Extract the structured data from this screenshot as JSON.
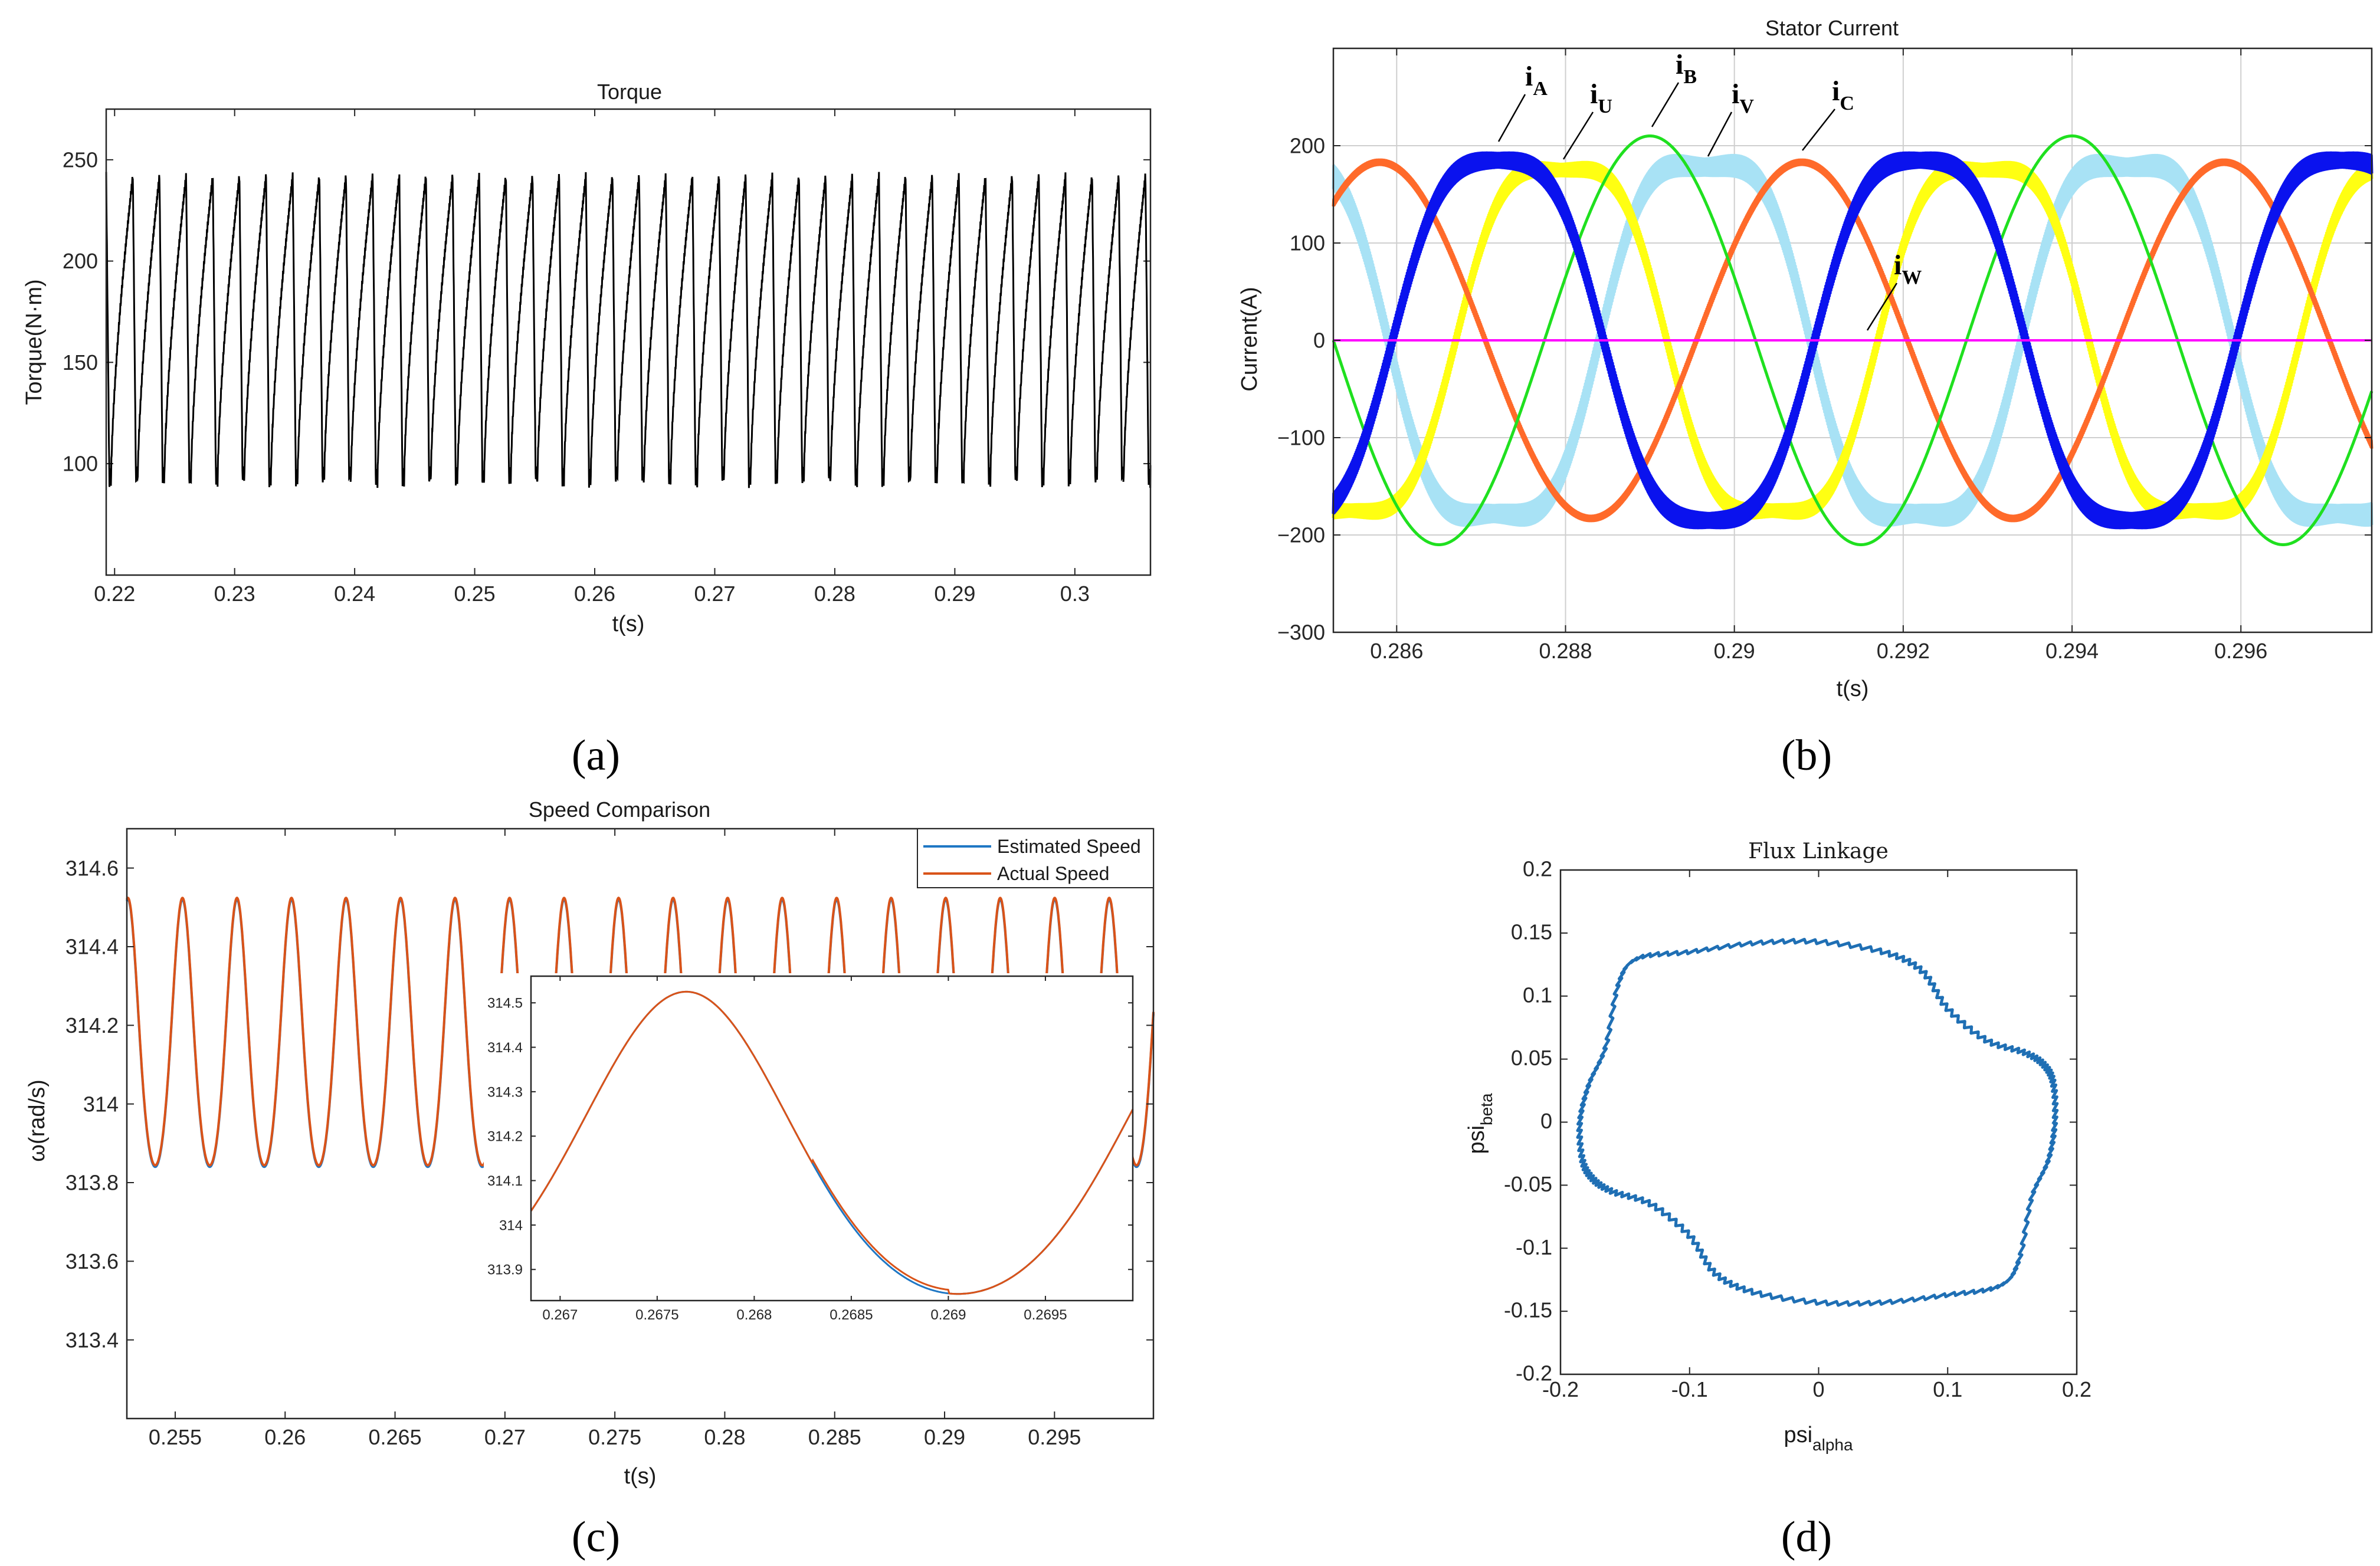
{
  "panels": {
    "a": {
      "label": "(a)",
      "chart_data": {
        "type": "line",
        "title": "Torque",
        "xlabel": "t(s)",
        "ylabel": "Torque(N·m)",
        "xlim": [
          0.2193,
          0.3063
        ],
        "ylim": [
          45,
          275
        ],
        "x_ticks": [
          0.22,
          0.23,
          0.24,
          0.25,
          0.26,
          0.27,
          0.28,
          0.29,
          0.3
        ],
        "x_tick_labels": [
          "0.22",
          "0.23",
          "0.24",
          "0.25",
          "0.26",
          "0.27",
          "0.28",
          "0.29",
          "0.3"
        ],
        "y_ticks": [
          100,
          150,
          200,
          250
        ],
        "y_tick_labels": [
          "100",
          "150",
          "200",
          "250"
        ],
        "grid": false,
        "series": [
          {
            "name": "Torque",
            "color": "#000000",
            "form": "sawtooth",
            "min": 89,
            "max": 242,
            "period": 0.00222,
            "rise_fraction": 0.3,
            "phase": 0.2193
          }
        ]
      }
    },
    "b": {
      "label": "(b)",
      "chart_data": {
        "type": "line",
        "title": "Stator Current",
        "xlabel": "t(s)",
        "ylabel": "Current(A)",
        "xlim": [
          0.28525,
          0.29755
        ],
        "ylim": [
          -300,
          300
        ],
        "x_ticks": [
          0.286,
          0.288,
          0.29,
          0.292,
          0.294,
          0.296
        ],
        "x_tick_labels": [
          "0.286",
          "0.288",
          "0.29",
          "0.292",
          "0.294",
          "0.296"
        ],
        "y_ticks": [
          -300,
          -200,
          -100,
          0,
          100,
          200
        ],
        "y_tick_labels": [
          "−300",
          "−200",
          "−100",
          "0",
          "100",
          "200"
        ],
        "grid": true,
        "series": [
          {
            "name": "iA",
            "color": "#0a12ee",
            "amp": 185,
            "period": 0.005,
            "peak_t": 0.2872,
            "ripple": 12,
            "flat_top": 0.55
          },
          {
            "name": "iB",
            "color": "#1fe01f",
            "amp": 210,
            "period": 0.005,
            "peak_t": 0.289,
            "ripple": 0,
            "flat_top": 0
          },
          {
            "name": "iC",
            "color": "#ff6a2a",
            "amp": 183,
            "period": 0.005,
            "peak_t": 0.2908,
            "ripple": 4,
            "flat_top": 0
          },
          {
            "name": "iU",
            "color": "#ffff12",
            "amp": 175,
            "period": 0.005,
            "peak_t": 0.28795,
            "ripple": 10,
            "flat_top": 0.7
          },
          {
            "name": "iV",
            "color": "#a8e2f5",
            "amp": 178,
            "period": 0.005,
            "peak_t": 0.28965,
            "ripple": 14,
            "flat_top": 0.75
          },
          {
            "name": "iW",
            "color": "#ff00ff",
            "amp": 0,
            "period": 0.005,
            "peak_t": 0,
            "ripple": 0,
            "flat_top": 0
          }
        ],
        "annotations": [
          {
            "main": "i",
            "sub": "A",
            "series": "iA"
          },
          {
            "main": "i",
            "sub": "U",
            "series": "iU"
          },
          {
            "main": "i",
            "sub": "B",
            "series": "iB"
          },
          {
            "main": "i",
            "sub": "V",
            "series": "iV"
          },
          {
            "main": "i",
            "sub": "C",
            "series": "iC"
          },
          {
            "main": "i",
            "sub": "W",
            "series": "iW"
          }
        ]
      }
    },
    "c": {
      "label": "(c)",
      "chart_data": {
        "type": "line",
        "title": "Speed Comparison",
        "xlabel": "t(s)",
        "ylabel": "ω(rad/s)",
        "xlim": [
          0.2528,
          0.2995
        ],
        "ylim": [
          313.2,
          314.7
        ],
        "x_ticks": [
          0.255,
          0.26,
          0.265,
          0.27,
          0.275,
          0.28,
          0.285,
          0.29,
          0.295
        ],
        "x_tick_labels": [
          "0.255",
          "0.26",
          "0.265",
          "0.27",
          "0.275",
          "0.28",
          "0.285",
          "0.29",
          "0.295"
        ],
        "y_ticks": [
          313.4,
          313.6,
          313.8,
          314,
          314.2,
          314.4,
          314.6
        ],
        "y_tick_labels": [
          "313.4",
          "313.6",
          "313.8",
          "314",
          "314.2",
          "314.4",
          "314.6"
        ],
        "grid": false,
        "legend_position": "top-right",
        "series": [
          {
            "name": "Estimated Speed",
            "color": "#1f77c4",
            "min": 313.84,
            "max": 314.52,
            "period": 0.00248,
            "peak_t": 0.27765
          },
          {
            "name": "Actual Speed",
            "color": "#d95319",
            "min": 313.84,
            "max": 314.52,
            "period": 0.00248,
            "peak_t": 0.27765
          }
        ],
        "inset": {
          "xlim": [
            0.26685,
            0.26995
          ],
          "ylim": [
            313.83,
            314.56
          ],
          "x_ticks": [
            0.267,
            0.2675,
            0.268,
            0.2685,
            0.269,
            0.2695
          ],
          "x_tick_labels": [
            "0.267",
            "0.2675",
            "0.268",
            "0.2685",
            "0.269",
            "0.2695"
          ],
          "y_ticks": [
            313.9,
            314,
            314.1,
            314.2,
            314.3,
            314.4,
            314.5
          ],
          "y_tick_labels": [
            "313.9",
            "314",
            "314.1",
            "314.2",
            "314.3",
            "314.4",
            "314.5"
          ],
          "peak_t": 0.26765,
          "trough_t": 0.26905,
          "min": 313.845,
          "max": 314.525
        }
      }
    },
    "d": {
      "label": "(d)",
      "chart_data": {
        "type": "line",
        "title": "Flux Linkage",
        "xlabel_main": "psi",
        "xlabel_sub": "alpha",
        "ylabel_main": "psi",
        "ylabel_sub": "beta",
        "xlim": [
          -0.2,
          0.2
        ],
        "ylim": [
          -0.2,
          0.2
        ],
        "x_ticks": [
          -0.2,
          -0.1,
          0,
          0.1,
          0.2
        ],
        "x_tick_labels": [
          "-0.2",
          "-0.1",
          "0",
          "0.1",
          "0.2"
        ],
        "y_ticks": [
          -0.2,
          -0.15,
          -0.1,
          -0.05,
          0,
          0.05,
          0.1,
          0.15,
          0.2
        ],
        "y_tick_labels": [
          "-0.2",
          "-0.15",
          "-0.1",
          "-0.05",
          "0",
          "0.05",
          "0.1",
          "0.15",
          "0.2"
        ],
        "grid": false,
        "series": [
          {
            "name": "flux",
            "color": "#1f6fb4",
            "points": [
              [
                0.183,
                0.0
              ],
              [
                0.182,
                0.03
              ],
              [
                0.175,
                0.045
              ],
              [
                0.16,
                0.055
              ],
              [
                0.13,
                0.065
              ],
              [
                0.1,
                0.09
              ],
              [
                0.08,
                0.12
              ],
              [
                0.05,
                0.135
              ],
              [
                0.0,
                0.143
              ],
              [
                -0.05,
                0.142
              ],
              [
                -0.1,
                0.135
              ],
              [
                -0.14,
                0.13
              ],
              [
                -0.155,
                0.11
              ],
              [
                -0.165,
                0.06
              ],
              [
                -0.178,
                0.03
              ],
              [
                -0.185,
                0.0
              ],
              [
                -0.183,
                -0.03
              ],
              [
                -0.175,
                -0.045
              ],
              [
                -0.16,
                -0.055
              ],
              [
                -0.13,
                -0.065
              ],
              [
                -0.1,
                -0.09
              ],
              [
                -0.08,
                -0.12
              ],
              [
                -0.05,
                -0.135
              ],
              [
                0.0,
                -0.143
              ],
              [
                0.05,
                -0.143
              ],
              [
                0.1,
                -0.137
              ],
              [
                0.14,
                -0.13
              ],
              [
                0.155,
                -0.11
              ],
              [
                0.165,
                -0.06
              ],
              [
                0.178,
                -0.03
              ],
              [
                0.183,
                0.0
              ]
            ]
          }
        ]
      }
    }
  }
}
